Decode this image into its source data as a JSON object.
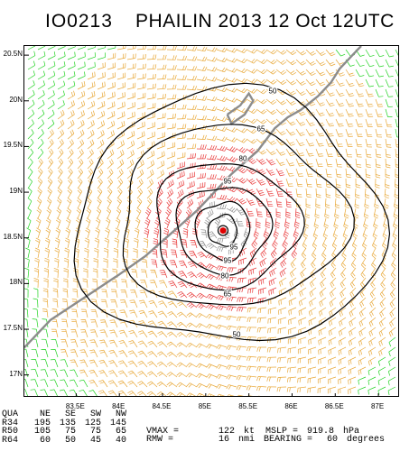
{
  "header": {
    "storm_id": "IO0213",
    "storm_info": "PHAILIN 2013 12 Oct 12UTC"
  },
  "map": {
    "lat_labels": [
      "20.5N",
      "20N",
      "19.5N",
      "19N",
      "18.5N",
      "18N",
      "17.5N",
      "17N"
    ],
    "lon_labels": [
      "83.5E",
      "84E",
      "84.5E",
      "85E",
      "85.5E",
      "86E",
      "86.5E",
      "87E"
    ],
    "contour_labels": [
      "50",
      "65",
      "80",
      "95",
      "95",
      "95",
      "80",
      "65",
      "50"
    ],
    "center": {
      "lat": 18.6,
      "lon": 85.2
    },
    "colors": {
      "green": "#22d322",
      "orange": "#e8a838",
      "red": "#e83838",
      "gray": "#8c8c8c",
      "contour": "#000000",
      "coast": "#8c8c8c",
      "center": "#e00000"
    }
  },
  "radii_table": {
    "headers": [
      "QUA",
      "NE",
      "SE",
      "SW",
      "NW"
    ],
    "rows": [
      [
        "R34",
        "195",
        "135",
        "125",
        "145"
      ],
      [
        "R50",
        "105",
        "75",
        "75",
        "65"
      ],
      [
        "R64",
        "60",
        "50",
        "45",
        "40"
      ]
    ]
  },
  "summary": {
    "vmax_label": "VMAX =",
    "vmax_value": "122",
    "vmax_unit": "kt",
    "mslp_label": "MSLP =",
    "mslp_value": "919.8",
    "mslp_unit": "hPa",
    "rmw_label": "RMW =",
    "rmw_value": "16",
    "rmw_unit": "nmi",
    "bearing_label": "BEARING =",
    "bearing_value": "60",
    "bearing_unit": "degrees"
  }
}
